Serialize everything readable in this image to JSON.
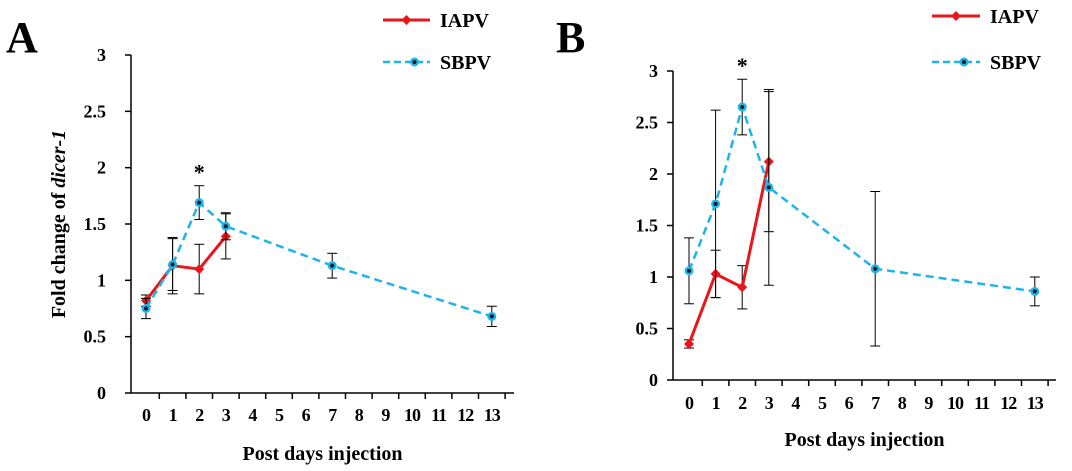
{
  "colors": {
    "iapv": "#e8151b",
    "sbpv": "#1fb4e8",
    "axis": "#000000",
    "errorbar": "#000000"
  },
  "chart_data": [
    {
      "panel": "A",
      "type": "line",
      "xlabel": "Post days injection",
      "ylabel_prefix": "Fold change  of ",
      "ylabel_italic": "dicer-1",
      "categories": [
        "0",
        "1",
        "2",
        "3",
        "4",
        "5",
        "6",
        "7",
        "8",
        "9",
        "10",
        "11",
        "12",
        "13"
      ],
      "ylim": [
        0,
        3
      ],
      "yticks": [
        "0",
        "0.5",
        "1",
        "1.5",
        "2",
        "2.5",
        "3"
      ],
      "legend": {
        "placement": "top-right"
      },
      "annotations": [
        {
          "text": "*",
          "x": "2"
        }
      ],
      "series": [
        {
          "name": "IAPV",
          "color_key": "iapv",
          "dash": false,
          "marker": "diamond",
          "points": [
            {
              "x": "0",
              "y": 0.82,
              "err": 0.05
            },
            {
              "x": "1",
              "y": 1.13,
              "err": 0.25
            },
            {
              "x": "2",
              "y": 1.1,
              "err": 0.22
            },
            {
              "x": "3",
              "y": 1.39,
              "err": 0.2
            }
          ]
        },
        {
          "name": "SBPV",
          "color_key": "sbpv",
          "dash": true,
          "marker": "circle",
          "points": [
            {
              "x": "0",
              "y": 0.75,
              "err": 0.09
            },
            {
              "x": "1",
              "y": 1.14,
              "err": 0.23
            },
            {
              "x": "2",
              "y": 1.69,
              "err": 0.15
            },
            {
              "x": "3",
              "y": 1.48,
              "err": 0.12
            },
            {
              "x": "7",
              "y": 1.13,
              "err": 0.11
            },
            {
              "x": "13",
              "y": 0.68,
              "err": 0.09
            }
          ]
        }
      ]
    },
    {
      "panel": "B",
      "type": "line",
      "xlabel": "Post days injection",
      "categories": [
        "0",
        "1",
        "2",
        "3",
        "4",
        "5",
        "6",
        "7",
        "8",
        "9",
        "10",
        "11",
        "12",
        "13"
      ],
      "ylim": [
        0,
        3
      ],
      "yticks": [
        "0",
        "0.5",
        "1",
        "1.5",
        "2",
        "2.5",
        "3"
      ],
      "legend": {
        "placement": "top-right"
      },
      "annotations": [
        {
          "text": "*",
          "x": "2"
        }
      ],
      "series": [
        {
          "name": "IAPV",
          "color_key": "iapv",
          "dash": false,
          "marker": "diamond",
          "points": [
            {
              "x": "0",
              "y": 0.35,
              "err": 0.04
            },
            {
              "x": "1",
              "y": 1.03,
              "err": 0.23
            },
            {
              "x": "2",
              "y": 0.9,
              "err": 0.21
            },
            {
              "x": "3",
              "y": 2.12,
              "err": 0.68
            }
          ]
        },
        {
          "name": "SBPV",
          "color_key": "sbpv",
          "dash": true,
          "marker": "circle",
          "points": [
            {
              "x": "0",
              "y": 1.06,
              "err": 0.32
            },
            {
              "x": "1",
              "y": 1.71,
              "err": 0.91
            },
            {
              "x": "2",
              "y": 2.65,
              "err": 0.27
            },
            {
              "x": "3",
              "y": 1.87,
              "err": 0.95
            },
            {
              "x": "7",
              "y": 1.08,
              "err": 0.75
            },
            {
              "x": "13",
              "y": 0.86,
              "err": 0.14
            }
          ]
        }
      ]
    }
  ]
}
